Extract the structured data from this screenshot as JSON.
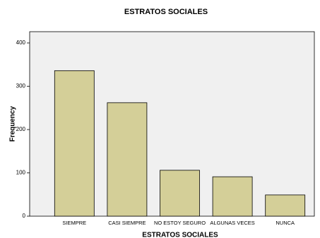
{
  "chart_data": {
    "type": "bar",
    "title": "ESTRATOS SOCIALES",
    "x_label": "ESTRATOS SOCIALES",
    "y_label": "Frequency",
    "categories": [
      "SIEMPRE",
      "CASI SIEMPRE",
      "NO ESTOY SEGURO",
      "ALGUNAS VECES",
      "NUNCA"
    ],
    "values": [
      336,
      262,
      106,
      91,
      49
    ],
    "color": "#d4cf98",
    "ylim": [
      0,
      426
    ],
    "yticks": [
      0,
      100,
      200,
      300,
      400
    ]
  }
}
